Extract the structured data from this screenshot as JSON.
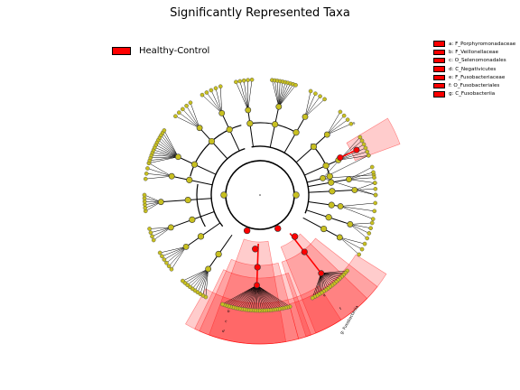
{
  "title": "Significantly Represented Taxa",
  "group_legend": {
    "label": "Healthy-Control",
    "color": "#ff0000"
  },
  "taxa_legend": [
    {
      "label": "a: F_Porphyromonadaceae",
      "color": "#ff0000"
    },
    {
      "label": "b: F_Veillonellaceae",
      "color": "#ff0000"
    },
    {
      "label": "c: O_Selenomonadales",
      "color": "#ff0000"
    },
    {
      "label": "d: C_Negativicutes",
      "color": "#ff0000"
    },
    {
      "label": "e: F_Fusobacteriaceae",
      "color": "#ff0000"
    },
    {
      "label": "f: O_Fusobacteriales",
      "color": "#ff0000"
    },
    {
      "label": "g: C_Fusobacteriia",
      "color": "#ff0000"
    }
  ],
  "sector_letters": [
    "a",
    "b",
    "c",
    "d",
    "e",
    "f"
  ],
  "sector_labels": [
    "g: Fusobacteriia"
  ],
  "colors": {
    "highlight": "#ff0000",
    "node": "#c8c020",
    "edge": "#000000"
  }
}
